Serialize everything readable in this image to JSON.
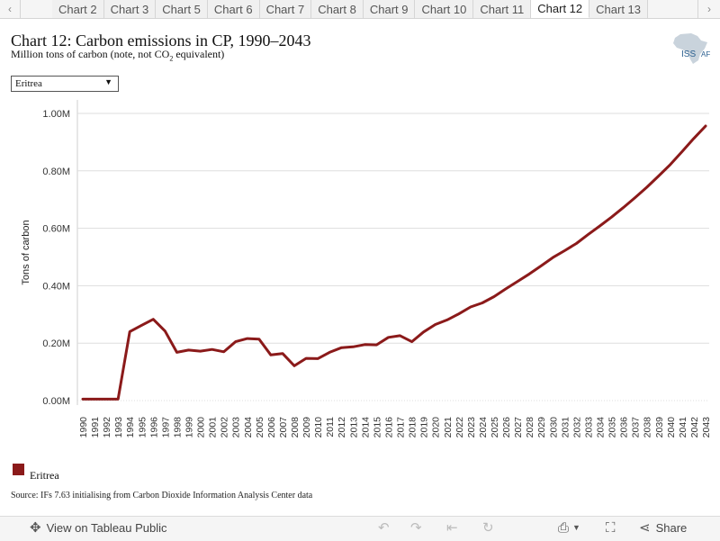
{
  "tabs": {
    "items": [
      "Chart 2",
      "Chart 3",
      "Chart 5",
      "Chart 6",
      "Chart 7",
      "Chart 8",
      "Chart 9",
      "Chart 10",
      "Chart 11",
      "Chart 12",
      "Chart 13"
    ],
    "active_index": 9
  },
  "header": {
    "title": "Chart 12: Carbon emissions in CP, 1990–2043",
    "subtitle_main": "Million tons of carbon (note, not CO",
    "subtitle_sub": "2",
    "subtitle_tail": " equivalent)",
    "logo_text": "ISS",
    "logo_small": "AF"
  },
  "filter": {
    "selected": "Eritrea"
  },
  "legend": {
    "label": "Eritrea"
  },
  "source": "Source: IFs 7.63 initialising from Carbon Dioxide Information Analysis Center data",
  "toolbar": {
    "view_label": "View on Tableau Public",
    "share_label": "Share"
  },
  "colors": {
    "series": "#8b1a1a",
    "grid": "#dddddd"
  },
  "chart_data": {
    "type": "line",
    "ylabel": "Tons of carbon",
    "xlabel": "",
    "ylim": [
      0,
      1.0
    ],
    "yticks": [
      0,
      0.2,
      0.4,
      0.6,
      0.8,
      1.0
    ],
    "ytick_labels": [
      "0.00M",
      "0.20M",
      "0.40M",
      "0.60M",
      "0.80M",
      "1.00M"
    ],
    "x": [
      1990,
      1991,
      1992,
      1993,
      1994,
      1995,
      1996,
      1997,
      1998,
      1999,
      2000,
      2001,
      2002,
      2003,
      2004,
      2005,
      2006,
      2007,
      2008,
      2009,
      2010,
      2011,
      2012,
      2013,
      2014,
      2015,
      2016,
      2017,
      2018,
      2019,
      2020,
      2021,
      2022,
      2023,
      2024,
      2025,
      2026,
      2027,
      2028,
      2029,
      2030,
      2031,
      2032,
      2033,
      2034,
      2035,
      2036,
      2037,
      2038,
      2039,
      2040,
      2041,
      2042,
      2043
    ],
    "series": [
      {
        "name": "Eritrea",
        "values": [
          0.005,
          0.005,
          0.005,
          0.005,
          0.24,
          0.262,
          0.283,
          0.242,
          0.168,
          0.176,
          0.172,
          0.178,
          0.17,
          0.205,
          0.216,
          0.214,
          0.159,
          0.164,
          0.121,
          0.147,
          0.146,
          0.168,
          0.184,
          0.187,
          0.195,
          0.194,
          0.22,
          0.226,
          0.205,
          0.239,
          0.265,
          0.281,
          0.302,
          0.326,
          0.34,
          0.362,
          0.389,
          0.415,
          0.441,
          0.469,
          0.498,
          0.522,
          0.547,
          0.578,
          0.608,
          0.639,
          0.672,
          0.707,
          0.743,
          0.782,
          0.822,
          0.867,
          0.913,
          0.956
        ]
      }
    ],
    "grid": true,
    "legend_position": "bottom-left"
  }
}
